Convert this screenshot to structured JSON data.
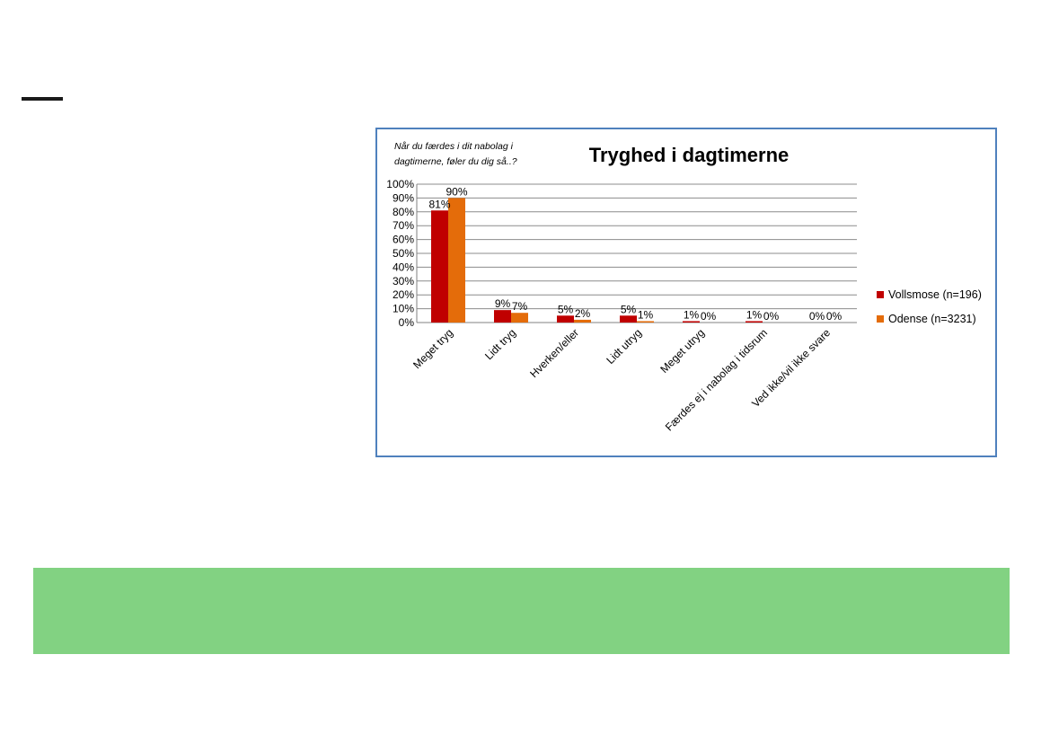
{
  "chart_data": {
    "type": "bar",
    "title": "Tryghed i dagtimerne",
    "subtitle_lines": [
      "Når du færdes i dit nabolag i",
      "dagtimerne, føler du dig så..?"
    ],
    "categories": [
      "Meget tryg",
      "Lidt tryg",
      "Hverken/eller",
      "Lidt utryg",
      "Meget utryg",
      "Færdes ej i nabolag i tidsrum",
      "Ved ikke/vil ikke svare"
    ],
    "series": [
      {
        "name": "Vollsmose (n=196)",
        "color": "#c00000",
        "values": [
          81,
          9,
          5,
          5,
          1,
          1,
          0
        ],
        "labels": [
          "81%",
          "9%",
          "5%",
          "5%",
          "1%",
          "1%",
          "0%"
        ]
      },
      {
        "name": "Odense (n=3231)",
        "color": "#e46c0a",
        "values": [
          90,
          7,
          2,
          1,
          0,
          0,
          0
        ],
        "labels": [
          "90%",
          "7%",
          "2%",
          "1%",
          "0%",
          "0%",
          "0%"
        ]
      }
    ],
    "y_ticks": [
      "0%",
      "10%",
      "20%",
      "30%",
      "40%",
      "50%",
      "60%",
      "70%",
      "80%",
      "90%",
      "100%"
    ],
    "ylim": [
      0,
      100
    ],
    "grid": true,
    "legend_position": "right"
  }
}
